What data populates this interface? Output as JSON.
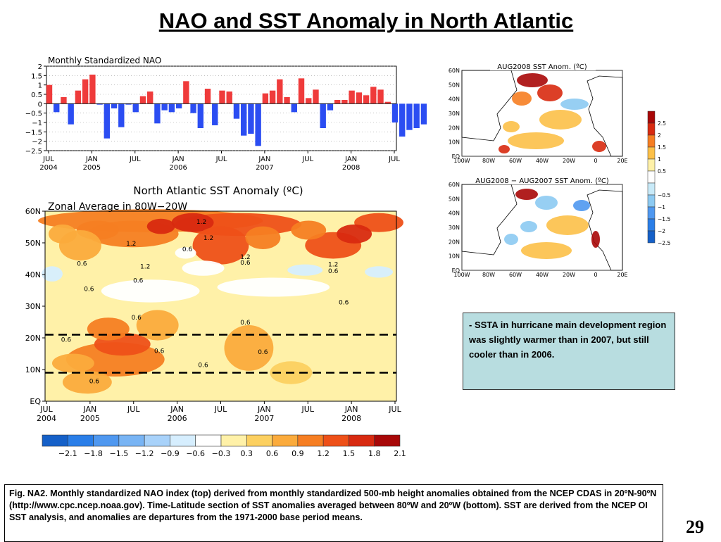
{
  "title": "NAO and SST Anomaly in North Atlantic",
  "colors": {
    "positive_bar": "#ef3b3b",
    "negative_bar": "#2b4df2",
    "hovmoller_scale": [
      "#1560c8",
      "#2a7ee8",
      "#4f98f0",
      "#78b4f4",
      "#a8d2fa",
      "#d6eefe",
      "#ffffff",
      "#fff1a8",
      "#fcd060",
      "#fbab3c",
      "#f67e22",
      "#ee5018",
      "#d82a10",
      "#a80808"
    ],
    "map_scale": [
      "#a80808",
      "#d82a10",
      "#f67e22",
      "#fcc048",
      "#fff1a8",
      "#ffffff",
      "#c8eaf8",
      "#8ccaf2",
      "#4f98f0",
      "#2a7ee8",
      "#1560c8"
    ]
  },
  "chart_data": [
    {
      "type": "bar",
      "title": "Monthly Standardized NAO",
      "ylim": [
        -2.5,
        2
      ],
      "y_ticks": [
        "2",
        "1.5",
        "1",
        "0.5",
        "0",
        "−0.5",
        "−1",
        "−1.5",
        "−2",
        "−2.5"
      ],
      "x_ticks": [
        {
          "label": "JUL",
          "year": "2004"
        },
        {
          "label": "JAN",
          "year": "2005"
        },
        {
          "label": "JUL",
          "year": ""
        },
        {
          "label": "JAN",
          "year": "2006"
        },
        {
          "label": "JUL",
          "year": ""
        },
        {
          "label": "JAN",
          "year": "2007"
        },
        {
          "label": "JUL",
          "year": ""
        },
        {
          "label": "JAN",
          "year": "2008"
        },
        {
          "label": "JUL",
          "year": ""
        }
      ],
      "values": [
        1.0,
        -0.45,
        0.35,
        -1.1,
        0.7,
        1.3,
        1.55,
        -0.05,
        -1.85,
        -0.25,
        -1.25,
        -0.05,
        -0.45,
        0.4,
        0.65,
        -1.05,
        -0.35,
        -0.45,
        -0.25,
        1.2,
        -0.5,
        -1.3,
        0.8,
        -1.15,
        0.7,
        0.65,
        -0.8,
        -1.7,
        -1.6,
        -2.25,
        0.55,
        0.7,
        1.3,
        0.35,
        -0.45,
        1.35,
        0.3,
        0.75,
        -1.3,
        -0.35,
        0.2,
        0.2,
        0.7,
        0.6,
        0.45,
        0.9,
        0.75,
        0.1,
        -1.0,
        -1.75,
        -1.4,
        -1.3,
        -1.1
      ]
    },
    {
      "type": "heatmap",
      "title": "North Atlantic SST Anomaly (ºC)",
      "subtitle": "Zonal Average in 80W−20W",
      "y_ticks": [
        "60N",
        "50N",
        "40N",
        "30N",
        "20N",
        "10N",
        "EQ"
      ],
      "x_ticks": [
        {
          "label": "JUL",
          "year": "2004"
        },
        {
          "label": "JAN",
          "year": "2005"
        },
        {
          "label": "JUL",
          "year": ""
        },
        {
          "label": "JAN",
          "year": "2006"
        },
        {
          "label": "JUL",
          "year": ""
        },
        {
          "label": "JAN",
          "year": "2007"
        },
        {
          "label": "JUL",
          "year": ""
        },
        {
          "label": "JAN",
          "year": "2008"
        },
        {
          "label": "JUL",
          "year": ""
        }
      ],
      "dashed_latitudes": [
        "21N",
        "9N"
      ],
      "contour_labels": [
        {
          "text": "1.2",
          "x": 0.445,
          "y": 0.055
        },
        {
          "text": "1.2",
          "x": 0.465,
          "y": 0.14
        },
        {
          "text": "1.2",
          "x": 0.245,
          "y": 0.17
        },
        {
          "text": "0.6",
          "x": 0.405,
          "y": 0.2
        },
        {
          "text": "1.2",
          "x": 0.57,
          "y": 0.24
        },
        {
          "text": "0.6",
          "x": 0.57,
          "y": 0.27
        },
        {
          "text": "0.6",
          "x": 0.105,
          "y": 0.275
        },
        {
          "text": "1.2",
          "x": 0.285,
          "y": 0.29
        },
        {
          "text": "1.2",
          "x": 0.82,
          "y": 0.28
        },
        {
          "text": "0.6",
          "x": 0.82,
          "y": 0.315
        },
        {
          "text": "0.6",
          "x": 0.265,
          "y": 0.365
        },
        {
          "text": "0.6",
          "x": 0.125,
          "y": 0.41
        },
        {
          "text": "0.6",
          "x": 0.85,
          "y": 0.48
        },
        {
          "text": "0.6",
          "x": 0.26,
          "y": 0.56
        },
        {
          "text": "0.6",
          "x": 0.57,
          "y": 0.585
        },
        {
          "text": "0.6",
          "x": 0.06,
          "y": 0.675
        },
        {
          "text": "0.6",
          "x": 0.325,
          "y": 0.735
        },
        {
          "text": "0.6",
          "x": 0.62,
          "y": 0.74
        },
        {
          "text": "0.6",
          "x": 0.45,
          "y": 0.81
        },
        {
          "text": "0.6",
          "x": 0.14,
          "y": 0.895
        }
      ],
      "legend_labels": [
        "−2.1",
        "−1.8",
        "−1.5",
        "−1.2",
        "−0.9",
        "−0.6",
        "−0.3",
        "0.3",
        "0.6",
        "0.9",
        "1.2",
        "1.5",
        "1.8",
        "2.1"
      ]
    }
  ],
  "maps": {
    "top_title": "AUG2008 SST Anom. (ºC)",
    "bottom_title": "AUG2008 − AUG2007 SST Anom. (ºC)",
    "lat_ticks": [
      "60N",
      "50N",
      "40N",
      "30N",
      "20N",
      "10N",
      "EQ"
    ],
    "lon_ticks": [
      "100W",
      "80W",
      "60W",
      "40W",
      "20W",
      "0",
      "20E"
    ],
    "legend_labels": [
      "2.5",
      "2",
      "1.5",
      "1",
      "0.5",
      "−0.5",
      "−1",
      "−1.5",
      "−2",
      "−2.5"
    ]
  },
  "note": "- SSTA in hurricane main development region was slightly warmer than in 2007, but still cooler than in 2006.",
  "caption": "Fig. NA2. Monthly standardized NAO index (top) derived from monthly standardized 500-mb height anomalies obtained from the NCEP CDAS in 20ºN-90ºN (http://www.cpc.ncep.noaa.gov).  Time-Latitude section of SST anomalies averaged between 80ºW and 20ºW (bottom). SST are derived from the NCEP OI SST analysis, and anomalies are departures from the 1971-2000 base period means.",
  "page_number": "29"
}
